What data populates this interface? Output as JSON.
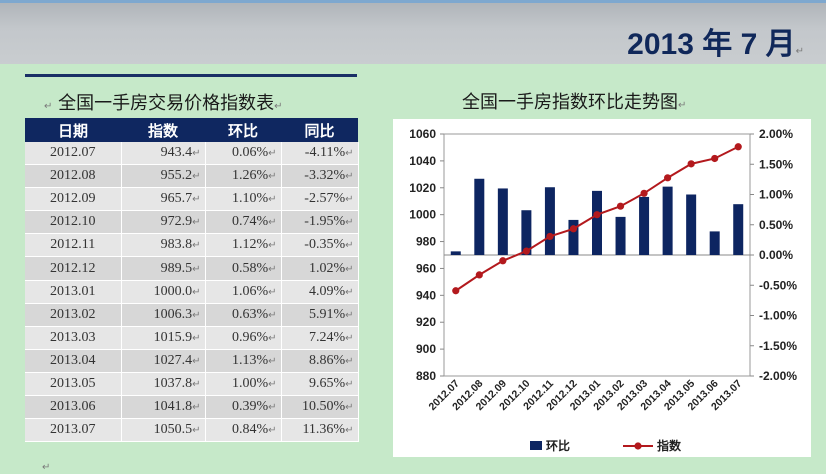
{
  "header": {
    "date_title": "2013 年 7 月",
    "mark": "↵"
  },
  "table": {
    "title": "全国一手房交易价格指数表",
    "headers": [
      "日期",
      "指数",
      "环比",
      "同比"
    ],
    "rows": [
      [
        "2012.07",
        "943.4",
        "0.06%",
        "-4.11%"
      ],
      [
        "2012.08",
        "955.2",
        "1.26%",
        "-3.32%"
      ],
      [
        "2012.09",
        "965.7",
        "1.10%",
        "-2.57%"
      ],
      [
        "2012.10",
        "972.9",
        "0.74%",
        "-1.95%"
      ],
      [
        "2012.11",
        "983.8",
        "1.12%",
        "-0.35%"
      ],
      [
        "2012.12",
        "989.5",
        "0.58%",
        "1.02%"
      ],
      [
        "2013.01",
        "1000.0",
        "1.06%",
        "4.09%"
      ],
      [
        "2013.02",
        "1006.3",
        "0.63%",
        "5.91%"
      ],
      [
        "2013.03",
        "1015.9",
        "0.96%",
        "7.24%"
      ],
      [
        "2013.04",
        "1027.4",
        "1.13%",
        "8.86%"
      ],
      [
        "2013.05",
        "1037.8",
        "1.00%",
        "9.65%"
      ],
      [
        "2013.06",
        "1041.8",
        "0.39%",
        "10.50%"
      ],
      [
        "2013.07",
        "1050.5",
        "0.84%",
        "11.36%"
      ]
    ]
  },
  "chart_data": {
    "type": "bar",
    "title": "全国一手房指数环比走势图",
    "categories": [
      "2012.07",
      "2012.08",
      "2012.09",
      "2012.10",
      "2012.11",
      "2012.12",
      "2013.01",
      "2013.02",
      "2013.03",
      "2013.04",
      "2013.05",
      "2013.06",
      "2013.07"
    ],
    "series": [
      {
        "name": "环比",
        "type": "bar",
        "axis": "right",
        "color": "#0d2561",
        "values": [
          0.06,
          1.26,
          1.1,
          0.74,
          1.12,
          0.58,
          1.06,
          0.63,
          0.96,
          1.13,
          1.0,
          0.39,
          0.84
        ]
      },
      {
        "name": "指数",
        "type": "line",
        "axis": "left",
        "color": "#b3191d",
        "values": [
          943.4,
          955.2,
          965.7,
          972.9,
          983.8,
          989.5,
          1000.0,
          1006.3,
          1015.9,
          1027.4,
          1037.8,
          1041.8,
          1050.5
        ]
      }
    ],
    "y_left": {
      "lim": [
        880,
        1060
      ],
      "ticks": [
        "880",
        "900",
        "920",
        "940",
        "960",
        "980",
        "1000",
        "1020",
        "1040",
        "1060"
      ]
    },
    "y_right": {
      "lim": [
        -2.0,
        2.0
      ],
      "ticks": [
        "-2.00%",
        "-1.50%",
        "-1.00%",
        "-0.50%",
        "0.00%",
        "0.50%",
        "1.00%",
        "1.50%",
        "2.00%"
      ]
    },
    "grid": false,
    "legend_position": "bottom"
  }
}
